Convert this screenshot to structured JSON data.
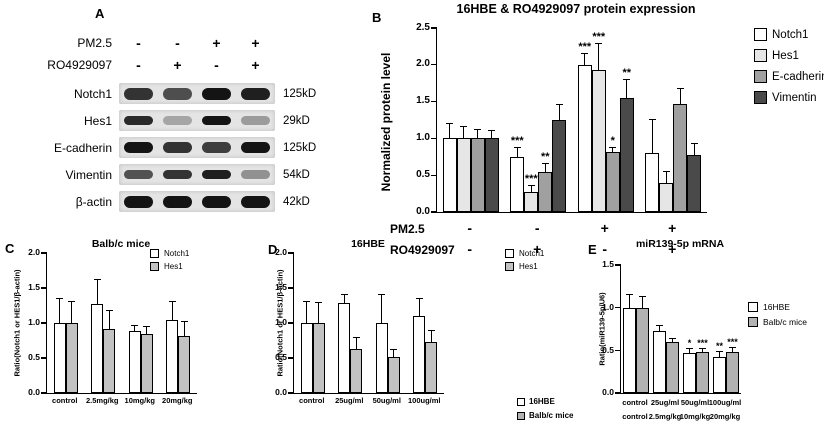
{
  "panels": {
    "A": {
      "label": "A"
    },
    "B": {
      "label": "B"
    },
    "C": {
      "label": "C"
    },
    "D": {
      "label": "D"
    },
    "E": {
      "label": "E"
    }
  },
  "panelA": {
    "treatments": [
      {
        "name": "PM2.5",
        "signs": [
          "-",
          "-",
          "+",
          "+"
        ]
      },
      {
        "name": "RO4929097",
        "signs": [
          "-",
          "+",
          "-",
          "+"
        ]
      }
    ],
    "blots": [
      {
        "protein": "Notch1",
        "size": "125kD",
        "intensities": [
          0.85,
          0.72,
          1,
          0.95
        ]
      },
      {
        "protein": "Hes1",
        "size": "29kD",
        "intensities": [
          0.9,
          0.3,
          1,
          0.35
        ]
      },
      {
        "protein": "E-cadherin",
        "size": "125kD",
        "intensities": [
          1,
          0.85,
          0.8,
          1
        ]
      },
      {
        "protein": "Vimentin",
        "size": "54kD",
        "intensities": [
          0.7,
          0.85,
          0.95,
          0.4
        ]
      },
      {
        "protein": "β-actin",
        "size": "42kD",
        "intensities": [
          1,
          1,
          1,
          1
        ]
      }
    ]
  },
  "chart_data": [
    {
      "id": "B",
      "type": "bar",
      "title": "16HBE & RO4929097 protein expression",
      "ylabel": "Normalized protein level",
      "ylim": [
        0,
        2.5
      ],
      "yticks": [
        0,
        0.5,
        1.0,
        1.5,
        2.0,
        2.5
      ],
      "legend_position": "right",
      "x_rows": [
        {
          "name": "PM2.5",
          "labels": [
            "-",
            "-",
            "+",
            "+"
          ]
        },
        {
          "name": "RO4929097",
          "labels": [
            "-",
            "+",
            "-",
            "+"
          ]
        }
      ],
      "series": [
        {
          "name": "Notch1",
          "color": "#ffffff",
          "values": [
            1.0,
            0.75,
            2.0,
            0.8
          ],
          "errors": [
            0.2,
            0.12,
            0.15,
            0.45
          ],
          "sig": [
            "",
            "***",
            "***",
            ""
          ]
        },
        {
          "name": "Hes1",
          "color": "#e6e6e6",
          "values": [
            1.0,
            0.27,
            1.93,
            0.4
          ],
          "errors": [
            0.15,
            0.08,
            0.35,
            0.15
          ],
          "sig": [
            "",
            "***",
            "***",
            ""
          ]
        },
        {
          "name": "E-cadherin",
          "color": "#a0a0a0",
          "values": [
            1.0,
            0.55,
            0.82,
            1.47
          ],
          "errors": [
            0.12,
            0.1,
            0.05,
            0.2
          ],
          "sig": [
            "",
            "**",
            "*",
            ""
          ]
        },
        {
          "name": "Vimentin",
          "color": "#4a4a4a",
          "values": [
            1.0,
            1.25,
            1.55,
            0.78
          ],
          "errors": [
            0.1,
            0.2,
            0.25,
            0.15
          ],
          "sig": [
            "",
            "",
            "**",
            ""
          ]
        }
      ]
    },
    {
      "id": "C",
      "type": "bar",
      "title": "Balb/c mice",
      "ylabel": "Ratio(Notch1 or HES1/β-actin)",
      "ylim": [
        0,
        2.0
      ],
      "yticks": [
        0,
        0.5,
        1.0,
        1.5,
        2.0
      ],
      "legend_position": "top-right",
      "categories": [
        "control",
        "2.5mg/kg",
        "10mg/kg",
        "20mg/kg"
      ],
      "series": [
        {
          "name": "Notch1",
          "color": "#ffffff",
          "values": [
            1.0,
            1.27,
            0.88,
            1.05
          ],
          "errors": [
            0.35,
            0.35,
            0.08,
            0.25
          ],
          "sig": [
            "",
            "",
            "",
            ""
          ]
        },
        {
          "name": "Hes1",
          "color": "#c2c2c2",
          "values": [
            1.0,
            0.92,
            0.85,
            0.82
          ],
          "errors": [
            0.3,
            0.25,
            0.1,
            0.2
          ],
          "sig": [
            "",
            "",
            "",
            ""
          ]
        }
      ]
    },
    {
      "id": "D",
      "type": "bar",
      "title": "16HBE",
      "ylabel": "Ratio(Notch1 or HES1/β-actin)",
      "ylim": [
        0,
        2.0
      ],
      "yticks": [
        0,
        0.5,
        1.0,
        1.5,
        2.0
      ],
      "legend_position": "top-right",
      "categories": [
        "control",
        "25ug/ml",
        "50ug/ml",
        "100ug/ml"
      ],
      "series": [
        {
          "name": "Notch1",
          "color": "#ffffff",
          "values": [
            1.0,
            1.28,
            1.0,
            1.1
          ],
          "errors": [
            0.3,
            0.12,
            0.4,
            0.25
          ],
          "sig": [
            "",
            "",
            "",
            ""
          ]
        },
        {
          "name": "Hes1",
          "color": "#c2c2c2",
          "values": [
            1.0,
            0.63,
            0.52,
            0.73
          ],
          "errors": [
            0.28,
            0.15,
            0.1,
            0.15
          ],
          "sig": [
            "",
            "",
            "",
            ""
          ]
        }
      ]
    },
    {
      "id": "E",
      "type": "bar",
      "title": "miR139-5p mRNA",
      "ylabel": "Ratio(miR139-5p/U6)",
      "ylim": [
        0,
        1.5
      ],
      "yticks": [
        0,
        0.5,
        1.0,
        1.5
      ],
      "legend_position": "right",
      "categories_rows": [
        [
          "control",
          "25ug/ml",
          "50ug/ml",
          "100ug/ml"
        ],
        [
          "control",
          "2.5mg/kg",
          "10mg/kg",
          "20mg/kg"
        ]
      ],
      "series": [
        {
          "name": "16HBE",
          "color": "#ffffff",
          "values": [
            1.0,
            0.73,
            0.47,
            0.42
          ],
          "errors": [
            0.15,
            0.05,
            0.05,
            0.06
          ],
          "sig": [
            "",
            "",
            "*",
            "**"
          ]
        },
        {
          "name": "Balb/c mice",
          "color": "#b2b2b2",
          "values": [
            1.0,
            0.6,
            0.48,
            0.48
          ],
          "errors": [
            0.12,
            0.03,
            0.04,
            0.05
          ],
          "sig": [
            "",
            "",
            "***",
            "***"
          ]
        }
      ]
    }
  ]
}
